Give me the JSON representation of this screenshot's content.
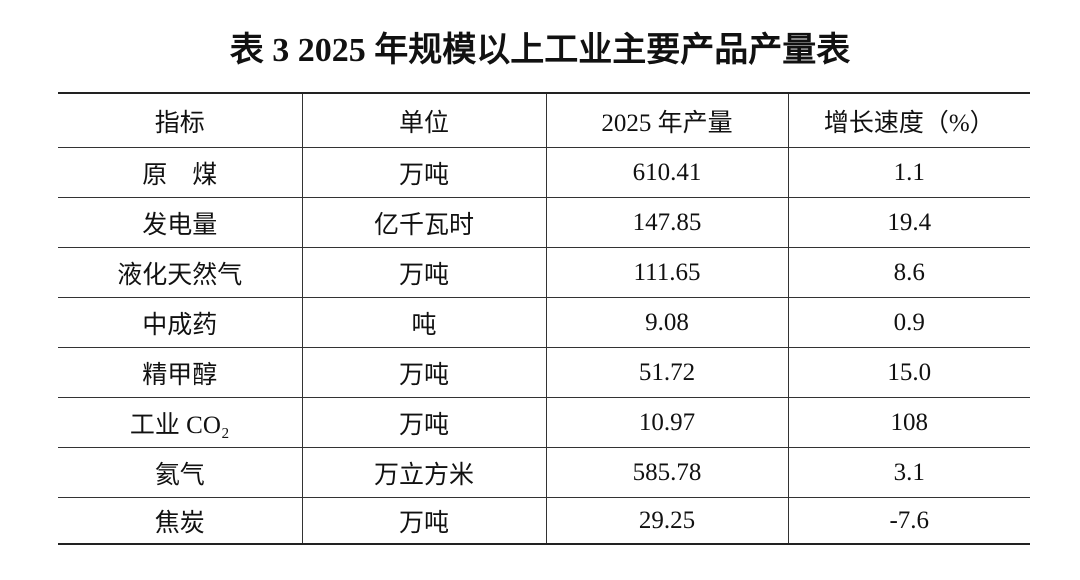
{
  "title": "表 3 2025 年规模以上工业主要产品产量表",
  "table": {
    "header": [
      "指标",
      "单位",
      "2025 年产量",
      "增长速度（%）"
    ],
    "rows": [
      [
        "原　煤",
        "万吨",
        "610.41",
        "1.1"
      ],
      [
        "发电量",
        "亿千瓦时",
        "147.85",
        "19.4"
      ],
      [
        "液化天然气",
        "万吨",
        "111.65",
        "8.6"
      ],
      [
        "中成药",
        "吨",
        "9.08",
        "0.9"
      ],
      [
        "精甲醇",
        "万吨",
        "51.72",
        "15.0"
      ],
      [
        "工业 CO₂",
        "万吨",
        "10.97",
        "108"
      ],
      [
        "氦气",
        "万立方米",
        "585.78",
        "3.1"
      ],
      [
        "焦炭",
        "万吨",
        "29.25",
        "-7.6"
      ]
    ]
  }
}
